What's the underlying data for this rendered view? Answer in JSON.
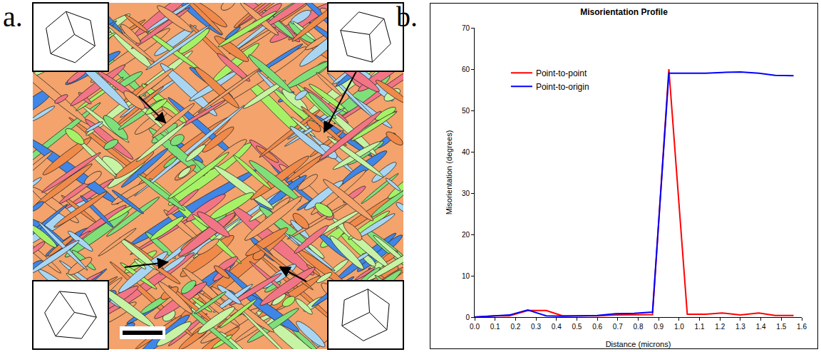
{
  "panel_labels": [
    "a.",
    "b."
  ],
  "chart_data": {
    "type": "line",
    "title": "Misorientation Profile",
    "x_label": "Distance (microns)",
    "y_label": "Misorientation (degrees)",
    "x": [
      0,
      0.05,
      0.1,
      0.17,
      0.26,
      0.35,
      0.43,
      0.52,
      0.6,
      0.69,
      0.78,
      0.87,
      0.95,
      1.04,
      1.13,
      1.21,
      1.3,
      1.39,
      1.47,
      1.56
    ],
    "series": [
      {
        "name": "Point-to-point",
        "color": "#ff0000",
        "values": [
          0,
          0.2,
          0.3,
          0.3,
          1.6,
          1.6,
          0.3,
          0.3,
          0.3,
          0.5,
          0.5,
          0.6,
          60,
          0.7,
          0.7,
          1.0,
          0.5,
          1.0,
          0.4,
          0.4
        ]
      },
      {
        "name": "Point-to-origin",
        "color": "#0000ff",
        "values": [
          0,
          0.2,
          0.3,
          0.5,
          1.7,
          0.3,
          0.2,
          0.3,
          0.4,
          0.8,
          0.9,
          1.2,
          59,
          59,
          59,
          59.2,
          59.3,
          59,
          58.5,
          58.4
        ]
      }
    ],
    "xlim": [
      0,
      1.6
    ],
    "xticks": [
      {
        "value": 0,
        "label": "0.0"
      },
      0.1,
      0.2,
      0.3,
      0.4,
      0.5,
      0.6,
      0.7,
      0.8,
      0.9,
      {
        "value": 1,
        "label": "1.0"
      },
      1.1,
      1.2,
      1.3,
      1.4,
      1.5,
      1.6
    ],
    "ylim": [
      0,
      70
    ],
    "yticks": [
      0,
      10,
      20,
      30,
      40,
      50,
      60,
      70
    ],
    "grid": false,
    "legend": "top left"
  }
}
